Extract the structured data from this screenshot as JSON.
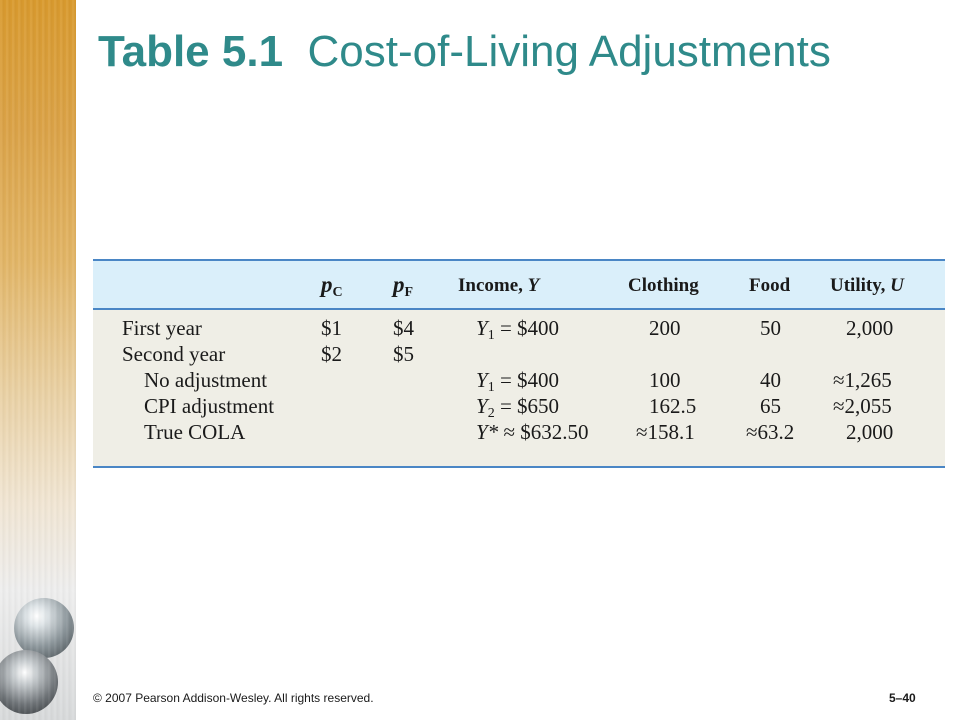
{
  "title": {
    "number": "Table 5.1",
    "text": "Cost-of-Living Adjustments"
  },
  "table": {
    "headers": {
      "pc_symbol": "p",
      "pc_sub": "C",
      "pf_symbol": "p",
      "pf_sub": "F",
      "income": "Income, ",
      "income_var": "Y",
      "clothing": "Clothing",
      "food": "Food",
      "utility": "Utility, ",
      "utility_var": "U"
    },
    "rows": [
      {
        "label": "First year",
        "pc": "$1",
        "pf": "$4",
        "y_var": "Y",
        "y_sub": "1",
        "income": " = $400",
        "clothing": "200",
        "food": "50",
        "utility": "2,000"
      },
      {
        "label": "Second year",
        "pc": "$2",
        "pf": "$5",
        "y_var": "",
        "y_sub": "",
        "income": "",
        "clothing": "",
        "food": "",
        "utility": ""
      },
      {
        "label": "No adjustment",
        "pc": "",
        "pf": "",
        "y_var": "Y",
        "y_sub": "1",
        "income": " = $400",
        "clothing": "100",
        "food": "40",
        "utility": "≈1,265"
      },
      {
        "label": "CPI adjustment",
        "pc": "",
        "pf": "",
        "y_var": "Y",
        "y_sub": "2",
        "income": " = $650",
        "clothing": "162.5",
        "food": "65",
        "utility": "≈2,055"
      },
      {
        "label": "True COLA",
        "pc": "",
        "pf": "",
        "y_var": "Y*",
        "y_sub": "",
        "income": " ≈ $632.50",
        "clothing": "≈158.1",
        "food": "≈63.2",
        "utility": "2,000"
      }
    ]
  },
  "footer": {
    "copyright": "© 2007 Pearson Addison-Wesley. All rights reserved.",
    "page": "5–40"
  },
  "colors": {
    "title": "#2f8a8a",
    "header_bg": "#daeffa",
    "body_bg": "#efeee6",
    "rule": "#4a86c5"
  }
}
